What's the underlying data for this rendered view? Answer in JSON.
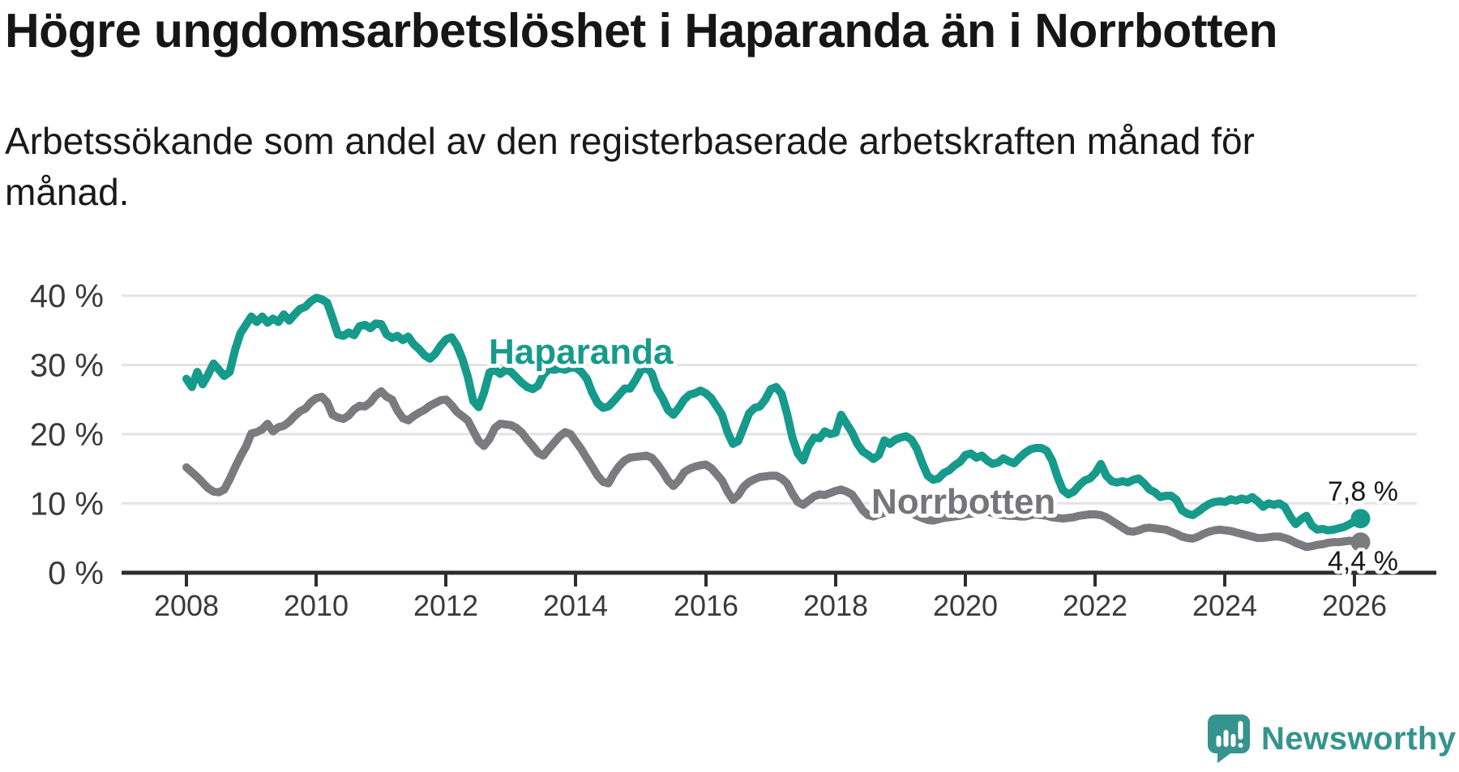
{
  "header": {
    "title": "Högre ungdomsarbetslöshet i Haparanda än i Norrbotten",
    "subtitle": "Arbetssökande som andel av den registerbaserade arbetskraften månad för månad."
  },
  "branding": {
    "logo_text": "Newsworthy",
    "logo_color": "#35948d",
    "logo_icon": "speech-bubble-bar-chart-exclamation"
  },
  "chart_data": {
    "type": "line",
    "title": "Högre ungdomsarbetslöshet i Haparanda än i Norrbotten",
    "subtitle": "Arbetssökande som andel av den registerbaserade arbetskraften månad för månad.",
    "unit": "%",
    "grid": "horizontal",
    "legend_position": "inline-labels",
    "ylim": [
      0,
      42
    ],
    "xlim": [
      2007.6,
      2027.2
    ],
    "y_ticks": [
      0,
      10,
      20,
      30,
      40
    ],
    "y_tick_labels": [
      "0 %",
      "10 %",
      "20 %",
      "30 %",
      "40 %"
    ],
    "x_tick_years": [
      2008,
      2010,
      2012,
      2014,
      2016,
      2018,
      2020,
      2022,
      2024,
      2026
    ],
    "x_tick_labels": [
      "2008",
      "2010",
      "2012",
      "2014",
      "2016",
      "2018",
      "2020",
      "2022",
      "2024",
      "2026"
    ],
    "start_year": 2008,
    "points_per_year": 12,
    "series": [
      {
        "name": "Haparanda",
        "color": "#169a8b",
        "end_label": "7,8 %",
        "end_value": 7.8,
        "values": [
          28.0,
          26.8,
          29.0,
          27.2,
          28.6,
          30.2,
          29.3,
          28.4,
          29.0,
          32.2,
          34.6,
          35.8,
          37.0,
          36.2,
          37.0,
          36.1,
          36.7,
          36.2,
          37.3,
          36.4,
          37.3,
          38.1,
          38.4,
          39.2,
          39.7,
          39.5,
          39.0,
          36.8,
          34.4,
          34.2,
          34.7,
          34.3,
          35.6,
          35.8,
          35.3,
          36.0,
          35.9,
          34.4,
          33.9,
          34.2,
          33.6,
          34.1,
          33.0,
          32.3,
          31.4,
          30.9,
          31.6,
          32.8,
          33.7,
          34.0,
          32.8,
          30.9,
          28.3,
          24.8,
          23.9,
          26.0,
          28.9,
          29.3,
          28.7,
          29.3,
          29.0,
          28.2,
          27.4,
          26.8,
          26.5,
          27.0,
          28.6,
          29.4,
          29.3,
          29.5,
          29.3,
          29.6,
          29.6,
          29.0,
          28.0,
          26.0,
          24.5,
          23.8,
          24.0,
          24.8,
          25.7,
          26.6,
          26.6,
          27.8,
          29.2,
          29.6,
          28.8,
          26.5,
          25.2,
          23.5,
          22.8,
          23.8,
          25.0,
          25.7,
          25.9,
          26.3,
          25.9,
          25.2,
          24.0,
          22.8,
          20.3,
          18.6,
          19.0,
          21.0,
          23.0,
          23.8,
          24.0,
          25.0,
          26.5,
          26.8,
          25.8,
          23.0,
          19.5,
          17.2,
          16.2,
          18.3,
          19.5,
          19.4,
          20.4,
          20.0,
          20.2,
          22.8,
          21.5,
          20.3,
          18.6,
          17.5,
          17.0,
          16.4,
          17.0,
          19.1,
          18.6,
          19.2,
          19.5,
          19.7,
          19.2,
          17.9,
          15.8,
          14.0,
          13.4,
          13.6,
          14.4,
          14.8,
          15.5,
          16.0,
          17.0,
          17.2,
          16.6,
          16.9,
          16.2,
          15.7,
          15.9,
          16.5,
          16.1,
          15.8,
          16.6,
          17.3,
          17.8,
          18.0,
          18.0,
          17.6,
          16.2,
          13.8,
          11.9,
          11.3,
          11.7,
          12.6,
          13.3,
          13.6,
          14.4,
          15.7,
          14.0,
          13.2,
          13.0,
          13.2,
          13.0,
          13.4,
          13.6,
          12.9,
          12.0,
          11.6,
          10.9,
          11.1,
          11.1,
          10.5,
          9.0,
          8.5,
          8.3,
          8.8,
          9.4,
          9.9,
          10.2,
          10.3,
          10.2,
          10.6,
          10.4,
          10.7,
          10.5,
          10.9,
          10.3,
          9.5,
          10.0,
          9.8,
          10.0,
          9.5,
          8.1,
          7.0,
          7.7,
          8.2,
          6.8,
          6.2,
          6.3,
          6.1,
          6.2,
          6.4,
          6.6,
          7.0,
          7.4,
          7.8
        ]
      },
      {
        "name": "Norrbotten",
        "color": "#7a7a7f",
        "label_color": "#75757a",
        "end_label": "4,4 %",
        "end_value": 4.4,
        "values": [
          15.2,
          14.5,
          13.8,
          13.0,
          12.2,
          11.7,
          11.6,
          12.0,
          13.5,
          15.2,
          16.8,
          18.2,
          20.1,
          20.3,
          20.7,
          21.5,
          20.4,
          21.0,
          21.2,
          21.8,
          22.6,
          23.3,
          23.7,
          24.6,
          25.2,
          25.4,
          24.6,
          22.8,
          22.4,
          22.2,
          22.7,
          23.6,
          24.1,
          24.0,
          24.6,
          25.6,
          26.2,
          25.4,
          25.0,
          23.4,
          22.3,
          22.0,
          22.6,
          23.1,
          23.5,
          24.1,
          24.5,
          24.9,
          25.0,
          24.2,
          23.2,
          22.6,
          22.0,
          20.5,
          19.0,
          18.3,
          19.3,
          20.9,
          21.5,
          21.4,
          21.3,
          20.9,
          20.2,
          19.2,
          18.3,
          17.3,
          16.9,
          17.9,
          18.8,
          19.7,
          20.3,
          20.0,
          18.9,
          17.8,
          16.5,
          15.3,
          14.0,
          13.1,
          12.9,
          14.3,
          15.4,
          16.2,
          16.6,
          16.7,
          16.8,
          16.9,
          16.6,
          15.7,
          14.6,
          13.3,
          12.5,
          13.3,
          14.5,
          15.0,
          15.3,
          15.5,
          15.6,
          15.1,
          14.2,
          13.3,
          11.7,
          10.5,
          11.2,
          12.4,
          13.1,
          13.5,
          13.8,
          13.9,
          14.0,
          14.0,
          13.6,
          12.9,
          11.4,
          10.2,
          9.8,
          10.4,
          11.0,
          11.3,
          11.2,
          11.5,
          11.8,
          12.0,
          11.7,
          11.3,
          10.2,
          9.0,
          8.3,
          8.1,
          8.4,
          8.6,
          8.8,
          8.9,
          9.0,
          8.9,
          8.6,
          8.2,
          7.9,
          7.6,
          7.5,
          7.7,
          7.9,
          8.0,
          8.1,
          8.2,
          8.4,
          8.5,
          8.6,
          8.8,
          8.8,
          8.6,
          8.4,
          8.3,
          8.2,
          8.2,
          8.1,
          8.1,
          8.3,
          8.4,
          8.3,
          8.2,
          8.0,
          7.9,
          7.8,
          7.9,
          8.0,
          8.2,
          8.3,
          8.4,
          8.4,
          8.3,
          8.0,
          7.5,
          7.0,
          6.5,
          6.0,
          5.9,
          6.1,
          6.4,
          6.5,
          6.4,
          6.3,
          6.2,
          5.9,
          5.6,
          5.2,
          5.0,
          4.9,
          5.2,
          5.6,
          5.9,
          6.1,
          6.2,
          6.1,
          6.0,
          5.8,
          5.6,
          5.4,
          5.2,
          5.0,
          5.0,
          5.1,
          5.2,
          5.2,
          5.0,
          4.7,
          4.3,
          4.0,
          3.7,
          3.8,
          4.0,
          4.1,
          4.3,
          4.4,
          4.4,
          4.5,
          4.6,
          4.5,
          4.4
        ]
      }
    ]
  }
}
